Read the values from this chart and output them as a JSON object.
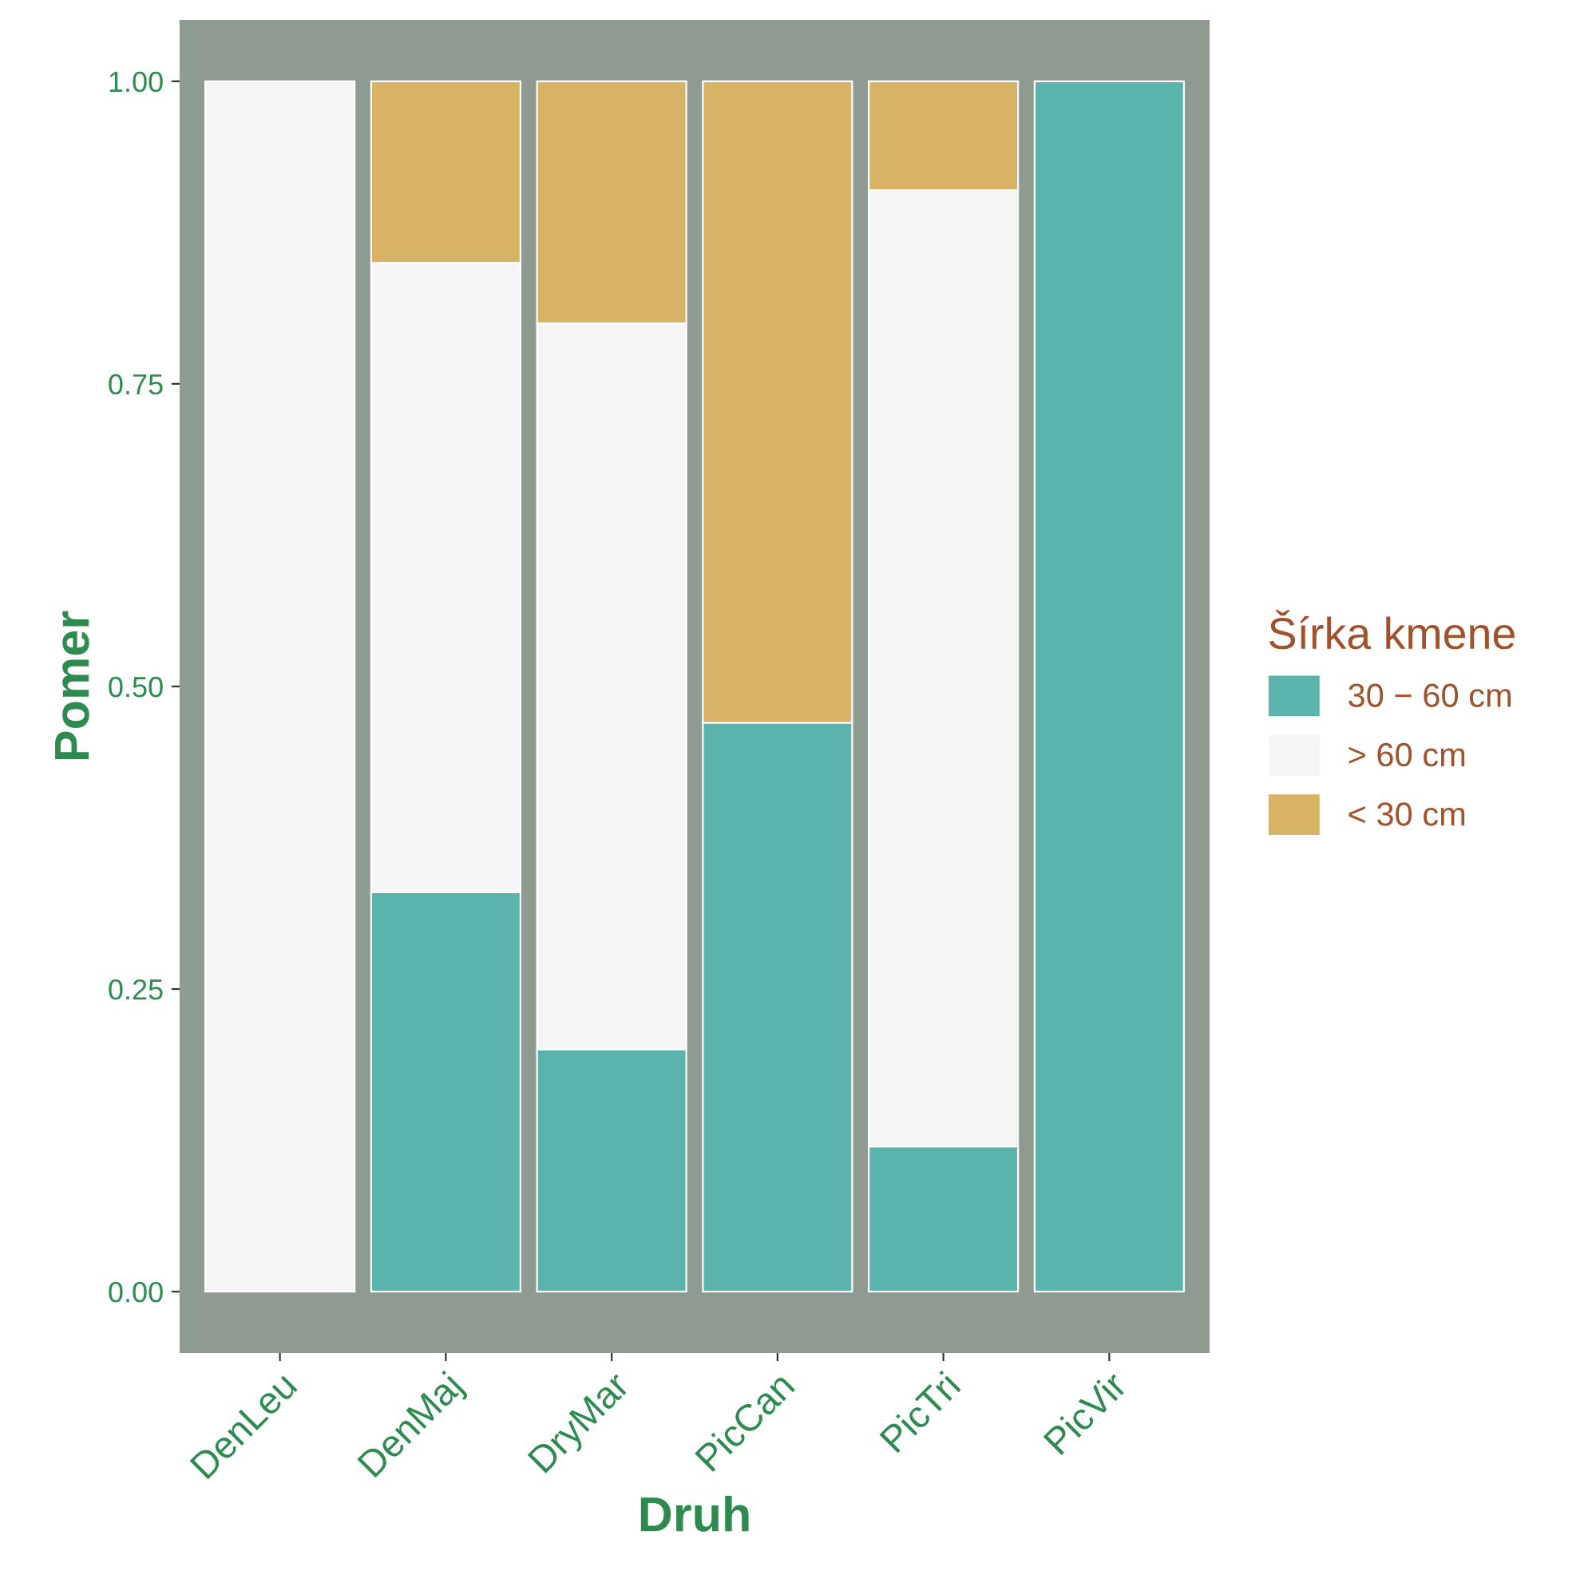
{
  "chart_data": {
    "type": "bar",
    "stacked": true,
    "xlabel": "Druh",
    "ylabel": "Pomer",
    "legend_title": "Šírka kmene",
    "legend": "right",
    "grid": false,
    "categories": [
      "DenLeu",
      "DenMaj",
      "DryMar",
      "PicCan",
      "PicTri",
      "PicVir"
    ],
    "series": [
      {
        "name": "30 − 60 cm",
        "color": "#5ab4ac",
        "values": [
          0,
          0.33,
          0.2,
          0.47,
          0.12,
          1.0
        ]
      },
      {
        "name": "> 60 cm",
        "color": "#f5f5f5",
        "values": [
          1.0,
          0.52,
          0.6,
          0,
          0.79,
          0
        ]
      },
      {
        "name": "< 30 cm",
        "color": "#d8b365",
        "values": [
          0,
          0.15,
          0.2,
          0.53,
          0.09,
          0
        ]
      }
    ],
    "ylim": [
      -0.05,
      1.05
    ],
    "yticks": [
      {
        "value": 0,
        "label": "0.00"
      },
      {
        "value": 0.25,
        "label": "0.25"
      },
      {
        "value": 0.5,
        "label": "0.50"
      },
      {
        "value": 0.75,
        "label": "0.75"
      },
      {
        "value": 1,
        "label": "1.00"
      }
    ]
  }
}
